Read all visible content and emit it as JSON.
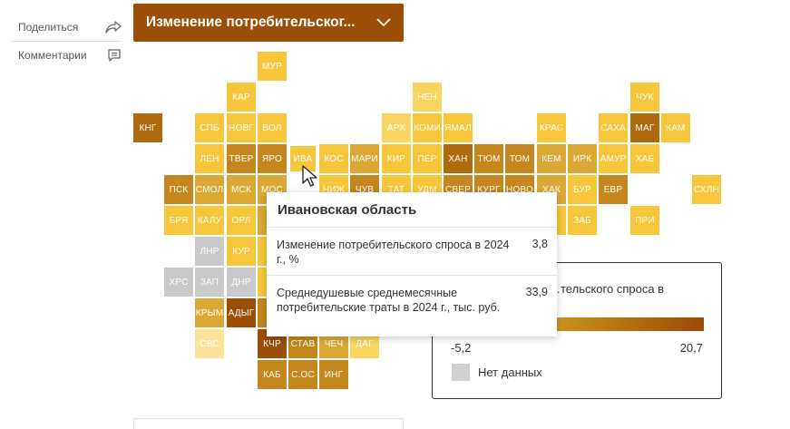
{
  "sidebar": {
    "share_label": "Поделиться",
    "comments_label": "Комментарии"
  },
  "dropdown": {
    "label": "Изменение потребительског..."
  },
  "colors": {
    "dark": "#9a4f05",
    "dark2": "#b06a0e",
    "med": "#c5871d",
    "medlight": "#dba835",
    "yellow": "#f7c63a",
    "light": "#f8d561",
    "pale": "#fde39a",
    "gray": "#c9c9c9"
  },
  "map": {
    "regions": [
      {
        "label": "МУР",
        "color": "yellow"
      },
      {
        "label": "КАР",
        "color": "yellow"
      },
      {
        "label": "НЕН",
        "color": "light"
      },
      {
        "label": "ЧУК",
        "color": "yellow"
      },
      {
        "label": "КНГ",
        "color": "dark2"
      },
      {
        "label": "СПБ",
        "color": "yellow"
      },
      {
        "label": "НОВГ",
        "color": "yellow"
      },
      {
        "label": "ВОЛ",
        "color": "yellow"
      },
      {
        "label": "АРХ",
        "color": "light"
      },
      {
        "label": "КОМИ",
        "color": "yellow"
      },
      {
        "label": "ЯМАЛ",
        "color": "yellow"
      },
      {
        "label": "КРАС",
        "color": "yellow"
      },
      {
        "label": "САХА",
        "color": "yellow"
      },
      {
        "label": "МАГ",
        "color": "dark2"
      },
      {
        "label": "КАМ",
        "color": "yellow"
      },
      {
        "label": "ЛЕН",
        "color": "yellow"
      },
      {
        "label": "ТВЕР",
        "color": "med"
      },
      {
        "label": "ЯРО",
        "color": "med"
      },
      {
        "label": "ИВА",
        "color": "yellow"
      },
      {
        "label": "КОС",
        "color": "yellow"
      },
      {
        "label": "МАРИ",
        "color": "medlight"
      },
      {
        "label": "КИР",
        "color": "yellow"
      },
      {
        "label": "ПЕР",
        "color": "yellow"
      },
      {
        "label": "ХАН",
        "color": "dark2"
      },
      {
        "label": "ТЮМ",
        "color": "med"
      },
      {
        "label": "ТОМ",
        "color": "med"
      },
      {
        "label": "КЕМ",
        "color": "medlight"
      },
      {
        "label": "ИРК",
        "color": "medlight"
      },
      {
        "label": "АМУР",
        "color": "yellow"
      },
      {
        "label": "ХАБ",
        "color": "yellow"
      },
      {
        "label": "ПСК",
        "color": "med"
      },
      {
        "label": "СМОЛ",
        "color": "medlight"
      },
      {
        "label": "МСК",
        "color": "medlight"
      },
      {
        "label": "МОС",
        "color": "medlight"
      },
      {
        "label": "НИЖ",
        "color": "yellow"
      },
      {
        "label": "ЧУВ",
        "color": "med"
      },
      {
        "label": "ТАТ",
        "color": "yellow"
      },
      {
        "label": "УДМ",
        "color": "yellow"
      },
      {
        "label": "СВЕР",
        "color": "med"
      },
      {
        "label": "КУРГ",
        "color": "med"
      },
      {
        "label": "НОВО",
        "color": "med"
      },
      {
        "label": "ХАК",
        "color": "medlight"
      },
      {
        "label": "БУР",
        "color": "yellow"
      },
      {
        "label": "ЕВР",
        "color": "med"
      },
      {
        "label": "СХЛН",
        "color": "yellow"
      },
      {
        "label": "БРЯ",
        "color": "yellow"
      },
      {
        "label": "КАЛУ",
        "color": "yellow"
      },
      {
        "label": "ОРЛ",
        "color": "yellow"
      },
      {
        "label": "Т",
        "color": "medlight"
      },
      {
        "label": "А",
        "color": "yellow"
      },
      {
        "label": "ЗАБ",
        "color": "yellow"
      },
      {
        "label": "ПРИ",
        "color": "yellow"
      },
      {
        "label": "ЛНР",
        "color": "gray"
      },
      {
        "label": "КУР",
        "color": "yellow"
      },
      {
        "label": "Л",
        "color": "yellow"
      },
      {
        "label": "ХРС",
        "color": "gray"
      },
      {
        "label": "ЗАП",
        "color": "gray"
      },
      {
        "label": "ДНР",
        "color": "gray"
      },
      {
        "label": "Е",
        "color": "yellow"
      },
      {
        "label": "КРЫМ",
        "color": "medlight"
      },
      {
        "label": "АДЫГ",
        "color": "dark"
      },
      {
        "label": "К",
        "color": "med"
      },
      {
        "label": "СВС",
        "color": "pale"
      },
      {
        "label": "КЧР",
        "color": "dark"
      },
      {
        "label": "СТАВ",
        "color": "med"
      },
      {
        "label": "ЧЕЧ",
        "color": "medlight"
      },
      {
        "label": "ДАГ",
        "color": "light"
      },
      {
        "label": "КАБ",
        "color": "med"
      },
      {
        "label": "С.ОС",
        "color": "med"
      },
      {
        "label": "ИНГ",
        "color": "med"
      }
    ]
  },
  "legend": {
    "title": "…тельского спроса в",
    "min": "-5,2",
    "max": "20,7",
    "no_data": "Нет данных"
  },
  "tooltip": {
    "title": "Ивановская область",
    "rows": [
      {
        "label": "Изменение потребительского спроса в 2024 г., %",
        "value": "3,8"
      },
      {
        "label": "Среднедушевые среднемесячные потребительские траты в 2024 г., тыс. руб.",
        "value": "33,9"
      }
    ]
  }
}
